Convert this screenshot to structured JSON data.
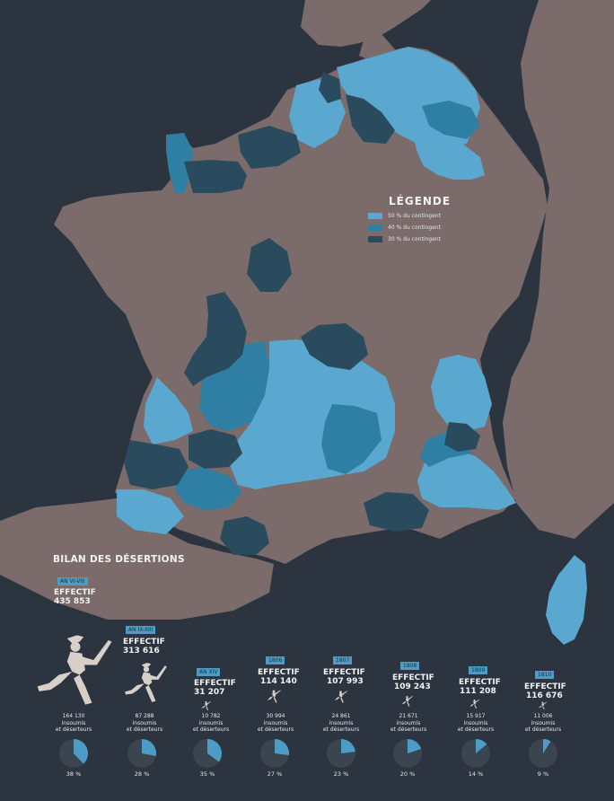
{
  "colors": {
    "background": "#2c3440",
    "land": "#7b6c6b",
    "pct50": "#5aa8d0",
    "pct40": "#2e7fa3",
    "pct30": "#294b5d",
    "pie_base": "#3a4550",
    "soldier": "#d8cfc9"
  },
  "legend": {
    "title": "LÉGENDE",
    "items": [
      {
        "label": "50 % du contingent",
        "color": "#5aa8d0"
      },
      {
        "label": "40 % du contingent",
        "color": "#2e7fa3"
      },
      {
        "label": "30 % du contingent",
        "color": "#294b5d"
      }
    ]
  },
  "summary": {
    "title": "BILAN DES DÉSERTIONS",
    "effectif_label": "EFFECTIF",
    "insoumis_line1": "insoumis",
    "insoumis_line2": "et déserteurs",
    "periods": [
      {
        "period": "AN VI-VIII",
        "effectif": "435 853",
        "deserters": "164 130",
        "share_pct": 38,
        "share_label": "38 %"
      },
      {
        "period": "AN IX-XIII",
        "effectif": "313 616",
        "deserters": "87 288",
        "share_pct": 28,
        "share_label": "28 %"
      },
      {
        "period": "AN XIV",
        "effectif": "31 207",
        "deserters": "10 782",
        "share_pct": 35,
        "share_label": "35 %"
      },
      {
        "period": "1806",
        "effectif": "114 140",
        "deserters": "30 994",
        "share_pct": 27,
        "share_label": "27 %"
      },
      {
        "period": "1807",
        "effectif": "107 993",
        "deserters": "24 861",
        "share_pct": 23,
        "share_label": "23 %"
      },
      {
        "period": "1808",
        "effectif": "109 243",
        "deserters": "21 671",
        "share_pct": 20,
        "share_label": "20 %"
      },
      {
        "period": "1809",
        "effectif": "111 208",
        "deserters": "15 917",
        "share_pct": 14,
        "share_label": "14 %"
      },
      {
        "period": "1810",
        "effectif": "116 676",
        "deserters": "11 006",
        "share_pct": 9,
        "share_label": "9 %"
      }
    ]
  }
}
